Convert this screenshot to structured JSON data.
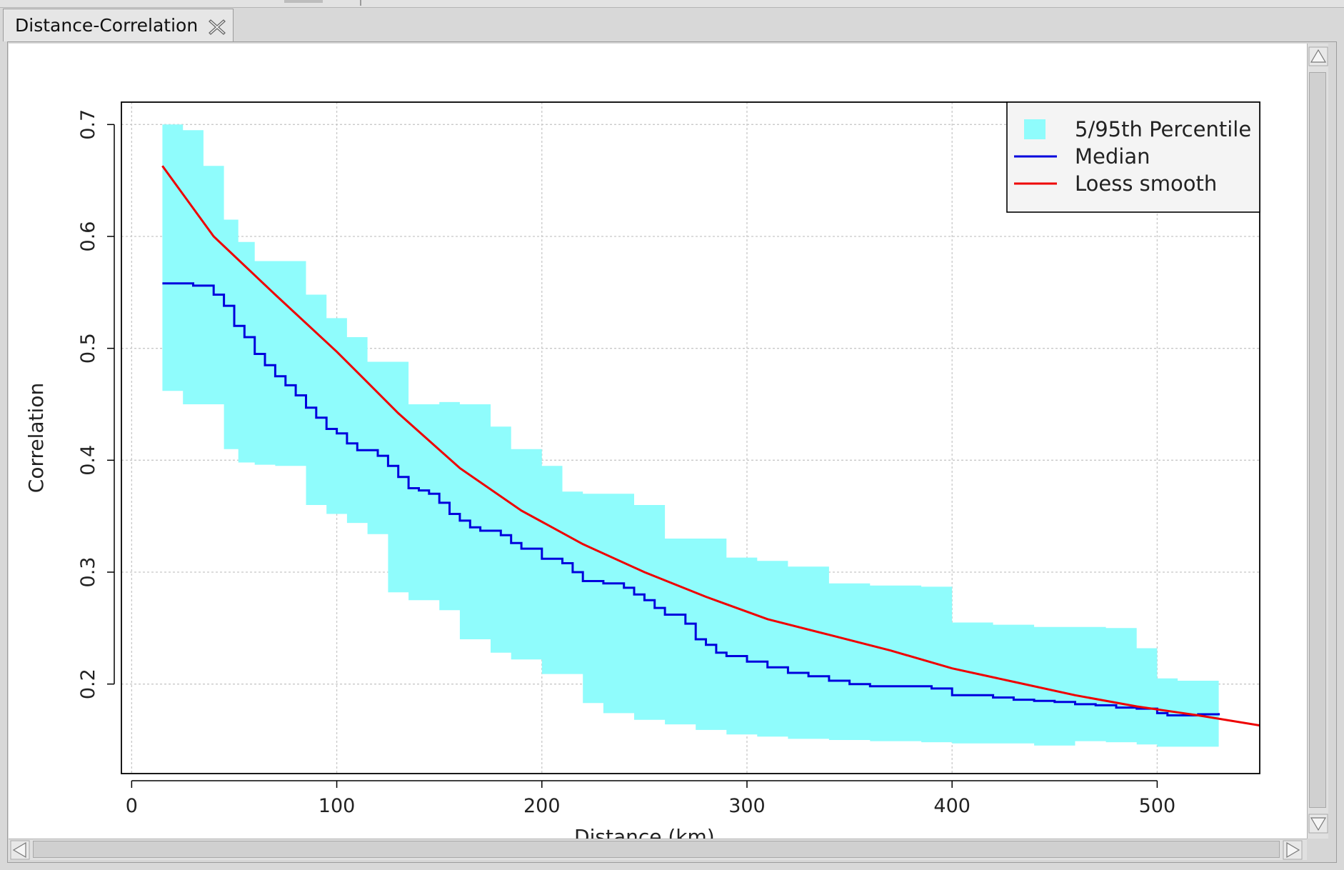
{
  "tab": {
    "title": "Distance-Correlation"
  },
  "icons": {
    "close": "close-icon",
    "up": "arrow-up-icon",
    "down": "arrow-down-icon",
    "left": "arrow-left-icon",
    "right": "arrow-right-icon"
  },
  "colors": {
    "band": "#8ffcfc",
    "median": "#0000dd",
    "loess": "#ee0000",
    "grid": "#c8c8c8",
    "axis": "#000000"
  },
  "chart_data": {
    "type": "line",
    "title": "",
    "xlabel": "Distance (km)",
    "ylabel": "Correlation",
    "xlim": [
      -5,
      550
    ],
    "ylim": [
      0.12,
      0.72
    ],
    "xticks": [
      0,
      100,
      200,
      300,
      400,
      500
    ],
    "xtick_labels": [
      "0",
      "100",
      "200",
      "300",
      "400",
      "500"
    ],
    "yticks": [
      0.2,
      0.3,
      0.4,
      0.5,
      0.6,
      0.7
    ],
    "ytick_labels": [
      "0.2",
      "0.3",
      "0.4",
      "0.5",
      "0.6",
      "0.7"
    ],
    "grid": true,
    "legend_position": "top-right",
    "series": [
      {
        "name": "5/95th Percentile",
        "kind": "band",
        "color": "#8ffcfc",
        "x": [
          15,
          25,
          35,
          45,
          52,
          60,
          70,
          85,
          95,
          105,
          115,
          125,
          135,
          150,
          160,
          175,
          185,
          200,
          210,
          220,
          230,
          245,
          260,
          275,
          290,
          305,
          320,
          340,
          360,
          385,
          400,
          420,
          440,
          460,
          475,
          490,
          500,
          510,
          530
        ],
        "upper": [
          0.7,
          0.695,
          0.663,
          0.615,
          0.595,
          0.578,
          0.578,
          0.548,
          0.527,
          0.51,
          0.488,
          0.488,
          0.45,
          0.452,
          0.45,
          0.43,
          0.41,
          0.395,
          0.372,
          0.37,
          0.37,
          0.36,
          0.33,
          0.33,
          0.313,
          0.31,
          0.305,
          0.29,
          0.288,
          0.287,
          0.255,
          0.253,
          0.251,
          0.251,
          0.25,
          0.232,
          0.205,
          0.203,
          0.203
        ],
        "lower": [
          0.462,
          0.45,
          0.45,
          0.41,
          0.398,
          0.396,
          0.395,
          0.36,
          0.352,
          0.344,
          0.334,
          0.282,
          0.275,
          0.266,
          0.24,
          0.228,
          0.222,
          0.209,
          0.209,
          0.183,
          0.174,
          0.168,
          0.164,
          0.159,
          0.155,
          0.153,
          0.151,
          0.15,
          0.149,
          0.148,
          0.147,
          0.147,
          0.145,
          0.149,
          0.148,
          0.146,
          0.144,
          0.144,
          0.144
        ]
      },
      {
        "name": "Median",
        "color": "#0000dd",
        "x": [
          15,
          30,
          40,
          45,
          50,
          55,
          60,
          65,
          70,
          75,
          80,
          85,
          90,
          95,
          100,
          105,
          110,
          120,
          125,
          130,
          135,
          140,
          145,
          150,
          155,
          160,
          165,
          170,
          180,
          185,
          190,
          200,
          210,
          215,
          220,
          230,
          240,
          245,
          250,
          255,
          260,
          270,
          275,
          280,
          285,
          290,
          300,
          310,
          320,
          330,
          340,
          350,
          360,
          380,
          390,
          400,
          420,
          430,
          440,
          450,
          460,
          470,
          480,
          490,
          495,
          500,
          505,
          510,
          520,
          530
        ],
        "values": [
          0.558,
          0.556,
          0.548,
          0.538,
          0.52,
          0.51,
          0.495,
          0.485,
          0.475,
          0.467,
          0.458,
          0.447,
          0.438,
          0.428,
          0.424,
          0.415,
          0.409,
          0.404,
          0.395,
          0.385,
          0.375,
          0.373,
          0.37,
          0.362,
          0.352,
          0.346,
          0.34,
          0.337,
          0.333,
          0.326,
          0.321,
          0.312,
          0.308,
          0.3,
          0.292,
          0.29,
          0.286,
          0.28,
          0.275,
          0.268,
          0.262,
          0.254,
          0.24,
          0.235,
          0.228,
          0.225,
          0.22,
          0.215,
          0.21,
          0.207,
          0.203,
          0.2,
          0.198,
          0.198,
          0.196,
          0.19,
          0.188,
          0.186,
          0.185,
          0.184,
          0.182,
          0.181,
          0.179,
          0.178,
          0.178,
          0.174,
          0.172,
          0.172,
          0.173,
          0.174
        ]
      },
      {
        "name": "Loess smooth",
        "color": "#ee0000",
        "x": [
          15,
          40,
          70,
          100,
          130,
          160,
          190,
          220,
          250,
          280,
          310,
          340,
          370,
          400,
          430,
          460,
          490,
          520,
          550
        ],
        "values": [
          0.663,
          0.6,
          0.548,
          0.497,
          0.442,
          0.393,
          0.355,
          0.325,
          0.3,
          0.278,
          0.258,
          0.244,
          0.23,
          0.214,
          0.202,
          0.19,
          0.18,
          0.172,
          0.163
        ]
      }
    ]
  }
}
